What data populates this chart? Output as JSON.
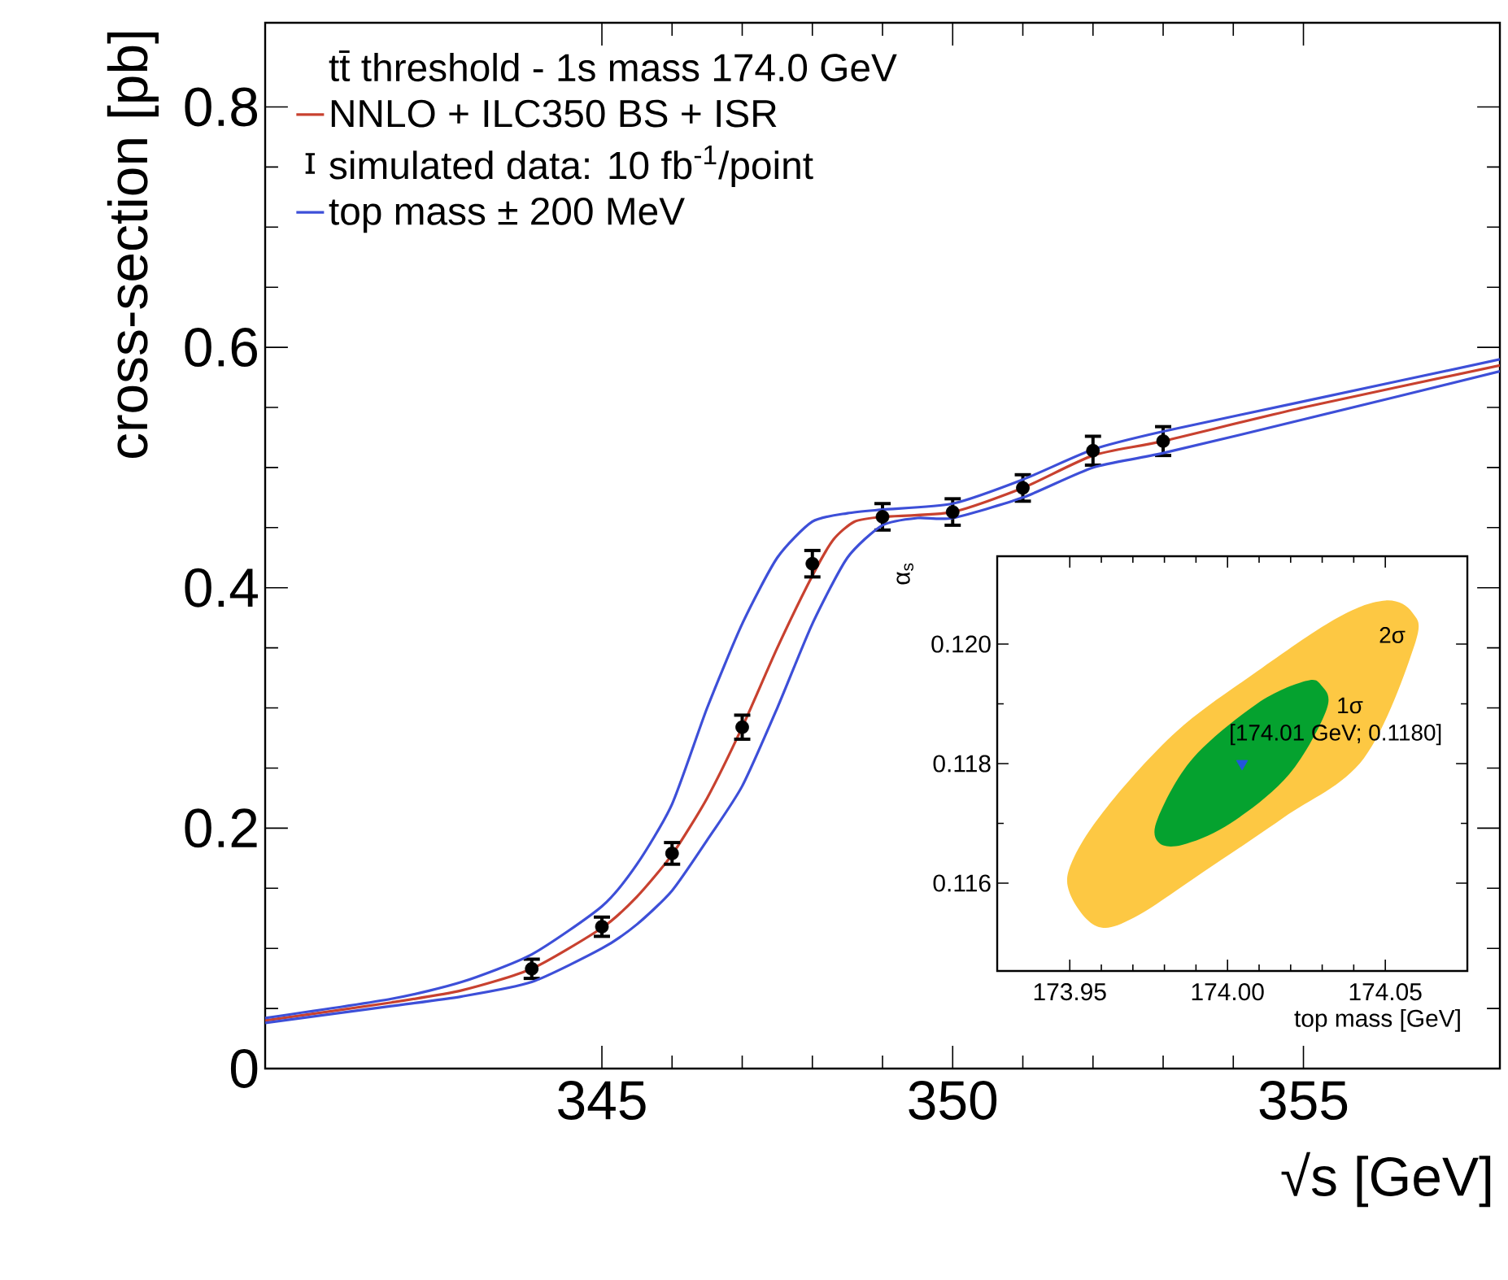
{
  "chart_data": [
    {
      "type": "line",
      "xlabel": "√s [GeV]",
      "ylabel": "cross-section [pb]",
      "legend_title": "tt̄ threshold - 1s mass 174.0 GeV",
      "legend": "top left",
      "xlim": [
        340.2,
        357.8
      ],
      "ylim": [
        0,
        0.87
      ],
      "xticks": [
        345,
        350,
        355
      ],
      "yticks": [
        0,
        0.2,
        0.4,
        0.6,
        0.8
      ],
      "series": [
        {
          "name": "NNLO + ILC350 BS + ISR",
          "color": "#c8412f",
          "x": [
            340.2,
            342,
            343,
            344,
            345,
            345.5,
            346,
            346.5,
            347,
            347.5,
            348,
            348.3,
            348.6,
            349,
            350,
            351,
            352,
            353,
            355,
            357.8
          ],
          "values": [
            0.04,
            0.055,
            0.065,
            0.083,
            0.117,
            0.143,
            0.178,
            0.225,
            0.284,
            0.35,
            0.41,
            0.44,
            0.455,
            0.459,
            0.463,
            0.483,
            0.51,
            0.522,
            0.55,
            0.585
          ]
        },
        {
          "name": "simulated data: 10 fb$^{-1}$/point",
          "type": "scatter",
          "color": "#000000",
          "x": [
            344,
            345,
            346,
            347,
            348,
            349,
            350,
            351,
            352,
            353
          ],
          "values": [
            0.083,
            0.118,
            0.179,
            0.284,
            0.42,
            0.459,
            0.463,
            0.483,
            0.514,
            0.522
          ],
          "errors": [
            0.008,
            0.008,
            0.009,
            0.01,
            0.011,
            0.011,
            0.011,
            0.011,
            0.012,
            0.012
          ]
        },
        {
          "name": "top mass ± 200 MeV",
          "color": "#3d4fd8",
          "x": [
            340.2,
            342,
            343,
            344,
            345,
            345.5,
            346,
            346.5,
            347,
            347.5,
            348,
            348.5,
            349,
            350,
            351,
            352,
            353,
            355,
            357.8
          ],
          "values": [
            0.042,
            0.058,
            0.072,
            0.095,
            0.135,
            0.17,
            0.22,
            0.3,
            0.37,
            0.425,
            0.455,
            0.462,
            0.465,
            0.47,
            0.49,
            0.515,
            0.53,
            0.555,
            0.59
          ]
        },
        {
          "color": "#3d4fd8",
          "x": [
            340.2,
            342,
            343,
            344,
            345,
            345.5,
            346,
            346.5,
            347,
            347.5,
            348,
            348.5,
            349,
            349.5,
            350,
            351,
            352,
            353,
            355,
            357.8
          ],
          "values": [
            0.038,
            0.052,
            0.06,
            0.072,
            0.1,
            0.12,
            0.148,
            0.19,
            0.235,
            0.3,
            0.37,
            0.425,
            0.452,
            0.458,
            0.458,
            0.475,
            0.5,
            0.512,
            0.54,
            0.58
          ]
        }
      ]
    },
    {
      "type": "area",
      "xlabel": "top mass [GeV]",
      "ylabel": "α$_{s}$",
      "xlim": [
        173.927,
        174.076
      ],
      "ylim": [
        0.11453,
        0.12147
      ],
      "xticks": [
        173.95,
        {
          "value": 174.0,
          "label": "174.00"
        },
        174.05
      ],
      "yticks": [
        0.116,
        0.118,
        {
          "value": 0.12,
          "label": "0.120"
        }
      ],
      "series": [
        {
          "color": "#fdc843",
          "x": [
            173.95,
            173.9585,
            173.9703,
            173.9924,
            174.0178,
            174.0432,
            174.0593,
            174.0585,
            174.05,
            174.0348,
            174.0093,
            173.9839,
            173.9619,
            173.9508
          ],
          "values": [
            0.11583,
            0.11528,
            0.11542,
            0.11619,
            0.1171,
            0.11809,
            0.11999,
            0.12053,
            0.12073,
            0.12044,
            0.11954,
            0.11854,
            0.11728,
            0.11637
          ]
        },
        {
          "color": "#05a22f",
          "x": [
            173.978,
            173.9856,
            174.0009,
            174.0195,
            174.0314,
            174.0297,
            174.0246,
            174.0093,
            173.989,
            173.978
          ],
          "values": [
            0.11669,
            0.11664,
            0.117,
            0.11782,
            0.11891,
            0.11931,
            0.11938,
            0.119,
            0.11809,
            0.1171
          ]
        },
        {
          "type": "scatter",
          "color": "#2255dd",
          "x": [
            174.0046
          ],
          "values": [
            0.118
          ]
        }
      ],
      "annotations": [
        "2σ",
        "1σ",
        "[174.01 GeV; 0.1180]"
      ]
    }
  ]
}
